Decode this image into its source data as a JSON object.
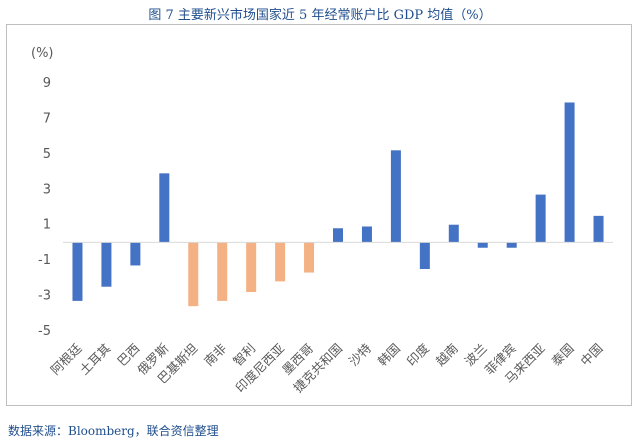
{
  "figure_title": "图 7  主要新兴市场国家近 5 年经常账户比 GDP 均值（%）",
  "source_note": "数据来源：Bloomberg，联合资信整理",
  "colors": {
    "positive_bar": "#4472c4",
    "highlight_bar": "#f4b183",
    "axis_text": "#595959",
    "title": "#1f4e8c"
  },
  "chart_data": {
    "type": "bar",
    "title": "",
    "ylabel": "(%)",
    "xlabel": "",
    "ylim": [
      -5,
      9
    ],
    "yticks": [
      9,
      7,
      5,
      3,
      1,
      -1,
      -3,
      -5
    ],
    "grid": false,
    "legend": "none",
    "categories": [
      "阿根廷",
      "土耳其",
      "巴西",
      "俄罗斯",
      "巴基斯坦",
      "南非",
      "智利",
      "印度尼西亚",
      "墨西哥",
      "捷克共和国",
      "沙特",
      "韩国",
      "印度",
      "越南",
      "波兰",
      "菲律宾",
      "马来西亚",
      "泰国",
      "中国"
    ],
    "values": [
      -3.3,
      -2.5,
      -1.3,
      3.9,
      -3.6,
      -3.3,
      -2.8,
      -2.2,
      -1.7,
      0.8,
      0.9,
      5.2,
      -1.5,
      1.0,
      -0.3,
      -0.3,
      2.7,
      7.9,
      1.5
    ],
    "highlighted": [
      "巴基斯坦",
      "南非",
      "智利",
      "印度尼西亚",
      "墨西哥"
    ]
  }
}
